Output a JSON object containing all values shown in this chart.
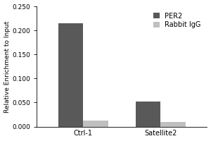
{
  "groups": [
    "Ctrl-1",
    "Satellite2"
  ],
  "series": {
    "PER2": [
      0.215,
      0.052
    ],
    "Rabbit IgG": [
      0.013,
      0.01
    ]
  },
  "bar_colors": {
    "PER2": "#595959",
    "Rabbit IgG": "#c0c0c0"
  },
  "ylabel": "Relative Enrichment to Input",
  "ylim": [
    0,
    0.25
  ],
  "yticks": [
    0.0,
    0.05,
    0.1,
    0.15,
    0.2,
    0.25
  ],
  "bar_width": 0.32,
  "legend_labels": [
    "PER2",
    "Rabbit IgG"
  ],
  "background_color": "#ffffff",
  "ylabel_fontsize": 6.5,
  "tick_fontsize": 6.5,
  "legend_fontsize": 7,
  "xlabel_fontsize": 7
}
